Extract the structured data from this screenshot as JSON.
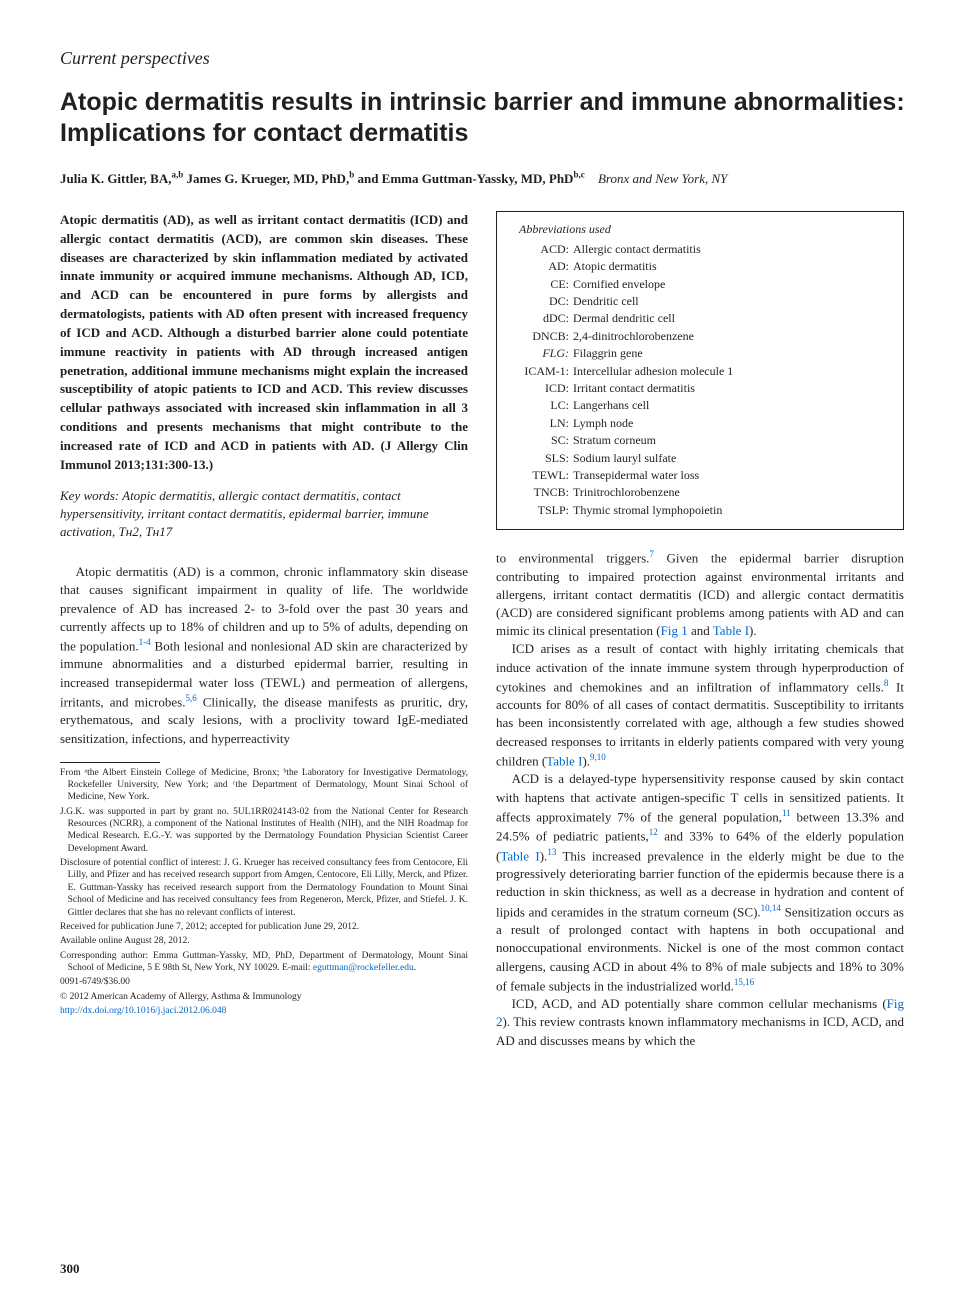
{
  "section_label": "Current perspectives",
  "title": "Atopic dermatitis results in intrinsic barrier and immune abnormalities: Implications for contact dermatitis",
  "authors_html": "Julia K. Gittler, BA,|a,b| James G. Krueger, MD, PhD,|b| and Emma Guttman-Yassky, MD, PhD|b,c|",
  "authors_location": "Bronx and New York, NY",
  "abstract": "Atopic dermatitis (AD), as well as irritant contact dermatitis (ICD) and allergic contact dermatitis (ACD), are common skin diseases. These diseases are characterized by skin inflammation mediated by activated innate immunity or acquired immune mechanisms. Although AD, ICD, and ACD can be encountered in pure forms by allergists and dermatologists, patients with AD often present with increased frequency of ICD and ACD. Although a disturbed barrier alone could potentiate immune reactivity in patients with AD through increased antigen penetration, additional immune mechanisms might explain the increased susceptibility of atopic patients to ICD and ACD. This review discusses cellular pathways associated with increased skin inflammation in all 3 conditions and presents mechanisms that might contribute to the increased rate of ICD and ACD in patients with AD. (J Allergy Clin Immunol 2013;131:300-13.)",
  "keywords_label": "Key words:",
  "keywords": "Atopic dermatitis, allergic contact dermatitis, contact hypersensitivity, irritant contact dermatitis, epidermal barrier, immune activation, Tʜ2, Tʜ17",
  "body_left_p1": "Atopic dermatitis (AD) is a common, chronic inflammatory skin disease that causes significant impairment in quality of life. The worldwide prevalence of AD has increased 2- to 3-fold over the past 30 years and currently affects up to 18% of children and up to 5% of adults, depending on the population.",
  "body_left_p1_sup": "1-4",
  "body_left_p1_cont": " Both lesional and nonlesional AD skin are characterized by immune abnormalities and a disturbed epidermal barrier, resulting in increased transepidermal water loss (TEWL) and permeation of allergens, irritants, and microbes.",
  "body_left_p1_sup2": "5,6",
  "body_left_p1_cont2": " Clinically, the disease manifests as pruritic, dry, erythematous, and scaly lesions, with a proclivity toward IgE-mediated sensitization, infections, and hyperreactivity",
  "footnotes": [
    "From ᵃthe Albert Einstein College of Medicine, Bronx; ᵇthe Laboratory for Investigative Dermatology, Rockefeller University, New York; and ᶜthe Department of Dermatology, Mount Sinai School of Medicine, New York.",
    "J.G.K. was supported in part by grant no. 5UL1RR024143-02 from the National Center for Research Resources (NCRR), a component of the National Institutes of Health (NIH), and the NIH Roadmap for Medical Research. E.G.-Y. was supported by the Dermatology Foundation Physician Scientist Career Development Award.",
    "Disclosure of potential conflict of interest: J. G. Krueger has received consultancy fees from Centocore, Eli Lilly, and Pfizer and has received research support from Amgen, Centocore, Eli Lilly, Merck, and Pfizer. E. Guttman-Yassky has received research support from the Dermatology Foundation to Mount Sinai School of Medicine and has received consultancy fees from Regeneron, Merck, Pfizer, and Stiefel. J. K. Gittler declares that she has no relevant conflicts of interest.",
    "Received for publication June 7, 2012; accepted for publication June 29, 2012.",
    "Available online August 28, 2012.",
    "Corresponding author: Emma Guttman-Yassky, MD, PhD, Department of Dermatology, Mount Sinai School of Medicine, 5 E 98th St, New York, NY 10029. E-mail: ",
    "0091-6749/$36.00",
    "© 2012 American Academy of Allergy, Asthma & Immunology"
  ],
  "footnote_email": "eguttman@rockefeller.edu",
  "footnote_doi": "http://dx.doi.org/10.1016/j.jaci.2012.06.048",
  "abbrev_title": "Abbreviations used",
  "abbreviations": [
    {
      "k": "ACD:",
      "v": "Allergic contact dermatitis"
    },
    {
      "k": "AD:",
      "v": "Atopic dermatitis"
    },
    {
      "k": "CE:",
      "v": "Cornified envelope"
    },
    {
      "k": "DC:",
      "v": "Dendritic cell"
    },
    {
      "k": "dDC:",
      "v": "Dermal dendritic cell"
    },
    {
      "k": "DNCB:",
      "v": "2,4-dinitrochlorobenzene"
    },
    {
      "k": "FLG:",
      "v": "Filaggrin gene"
    },
    {
      "k": "ICAM-1:",
      "v": "Intercellular adhesion molecule 1"
    },
    {
      "k": "ICD:",
      "v": "Irritant contact dermatitis"
    },
    {
      "k": "LC:",
      "v": "Langerhans cell"
    },
    {
      "k": "LN:",
      "v": "Lymph node"
    },
    {
      "k": "SC:",
      "v": "Stratum corneum"
    },
    {
      "k": "SLS:",
      "v": "Sodium lauryl sulfate"
    },
    {
      "k": "TEWL:",
      "v": "Transepidermal water loss"
    },
    {
      "k": "TNCB:",
      "v": "Trinitrochlorobenzene"
    },
    {
      "k": "TSLP:",
      "v": "Thymic stromal lymphopoietin"
    }
  ],
  "body_right_p1_pre": "to environmental triggers.",
  "body_right_p1_sup": "7",
  "body_right_p1": " Given the epidermal barrier disruption contributing to impaired protection against environmental irritants and allergens, irritant contact dermatitis (ICD) and allergic contact dermatitis (ACD) are considered significant problems among patients with AD and can mimic its clinical presentation (",
  "body_right_p1_fig": "Fig 1",
  "body_right_p1_and": " and ",
  "body_right_p1_tab": "Table I",
  "body_right_p1_end": ").",
  "body_right_p2": "ICD arises as a result of contact with highly irritating chemicals that induce activation of the innate immune system through hyperproduction of cytokines and chemokines and an infiltration of inflammatory cells.",
  "body_right_p2_sup": "8",
  "body_right_p2_cont": " It accounts for 80% of all cases of contact dermatitis. Susceptibility to irritants has been inconsistently correlated with age, although a few studies showed decreased responses to irritants in elderly patients compared with very young children (",
  "body_right_p2_tab": "Table I",
  "body_right_p2_end": ").",
  "body_right_p2_sup2": "9,10",
  "body_right_p3": "ACD is a delayed-type hypersensitivity response caused by skin contact with haptens that activate antigen-specific T cells in sensitized patients. It affects approximately 7% of the general population,",
  "body_right_p3_sup1": "11",
  "body_right_p3_cont1": " between 13.3% and 24.5% of pediatric patients,",
  "body_right_p3_sup2": "12",
  "body_right_p3_cont2": " and 33% to 64% of the elderly population (",
  "body_right_p3_tab": "Table I",
  "body_right_p3_cont3": ").",
  "body_right_p3_sup3": "13",
  "body_right_p3_cont4": " This increased prevalence in the elderly might be due to the progressively deteriorating barrier function of the epidermis because there is a reduction in skin thickness, as well as a decrease in hydration and content of lipids and ceramides in the stratum corneum (SC).",
  "body_right_p3_sup4": "10,14",
  "body_right_p3_cont5": " Sensitization occurs as a result of prolonged contact with haptens in both occupational and nonoccupational environments. Nickel is one of the most common contact allergens, causing ACD in about 4% to 8% of male subjects and 18% to 30% of female subjects in the industrialized world.",
  "body_right_p3_sup5": "15,16",
  "body_right_p4": "ICD, ACD, and AD potentially share common cellular mechanisms (",
  "body_right_p4_fig": "Fig 2",
  "body_right_p4_cont": "). This review contrasts known inflammatory mechanisms in ICD, ACD, and AD and discusses means by which the",
  "page_number": "300",
  "colors": {
    "text": "#231f20",
    "link": "#0066cc",
    "bg": "#ffffff"
  }
}
